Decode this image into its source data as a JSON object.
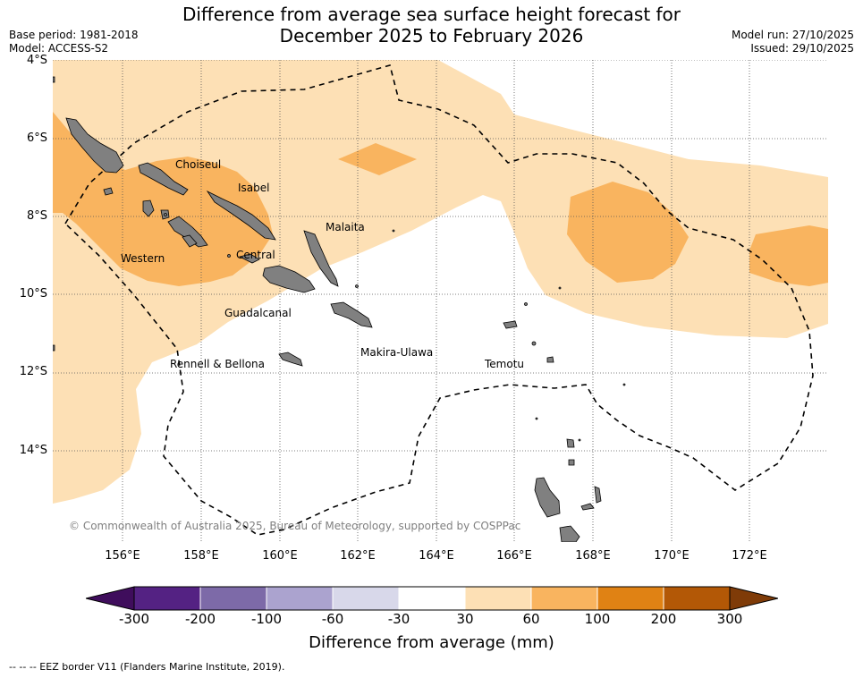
{
  "header": {
    "title_line1": "Difference from average sea surface height forecast for",
    "title_line2": "December 2025 to February 2026",
    "base_period": "Base period: 1981-2018",
    "model": "Model: ACCESS-S2",
    "model_run": "Model run: 27/10/2025",
    "issued": "Issued: 29/10/2025"
  },
  "axes": {
    "lat_labels": [
      "4°S",
      "6°S",
      "8°S",
      "10°S",
      "12°S",
      "14°S"
    ],
    "lon_labels": [
      "156°E",
      "158°E",
      "160°E",
      "162°E",
      "164°E",
      "166°E",
      "168°E",
      "170°E",
      "172°E"
    ]
  },
  "places": {
    "choiseul": "Choiseul",
    "isabel": "Isabel",
    "malaita": "Malaita",
    "western": "Western",
    "central": "Central",
    "guadalcanal": "Guadalcanal",
    "makira": "Makira-Ulawa",
    "rennell": "Rennell & Bellona",
    "temotu": "Temotu"
  },
  "copyright": "© Commonwealth of Australia 2025, Bureau of Meteorology, supported by COSPPac",
  "colorbar": {
    "label": "Difference from average (mm)",
    "ticks": [
      "-300",
      "-200",
      "-100",
      "-60",
      "-30",
      "30",
      "60",
      "100",
      "200",
      "300"
    ],
    "colors": [
      "#3f0d5c",
      "#542283",
      "#7d6aa8",
      "#aba3cf",
      "#d8d8ea",
      "#ffffff",
      "#fde0b5",
      "#f9b45f",
      "#e08214",
      "#b35806",
      "#7f3b08"
    ]
  },
  "legend": {
    "eez": "--  --  -- EEZ border V11 (Flanders Marine Institute, 2019)."
  }
}
